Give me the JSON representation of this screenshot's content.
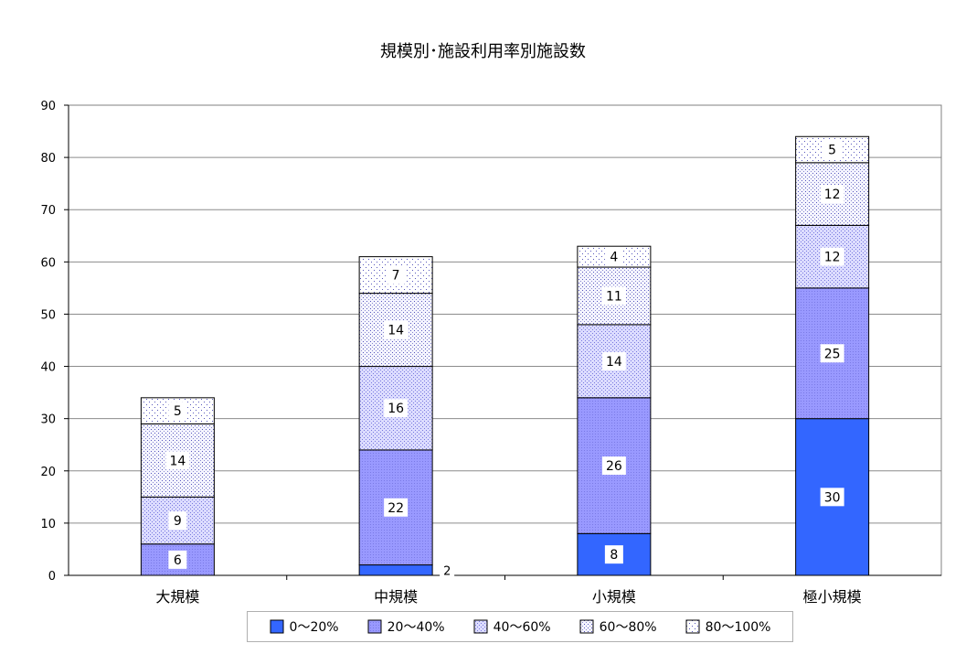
{
  "chart_data": {
    "type": "bar",
    "stacked": true,
    "title": "規模別･施設利用率別施設数",
    "categories": [
      "大規模",
      "中規模",
      "小規模",
      "極小規模"
    ],
    "series": [
      {
        "name": "0～20%",
        "values": [
          0,
          2,
          8,
          30
        ],
        "color": "#3366ff",
        "pattern": "solid"
      },
      {
        "name": "20～40%",
        "values": [
          6,
          22,
          26,
          25
        ],
        "color": "#9999ff",
        "pattern": "fine"
      },
      {
        "name": "40～60%",
        "values": [
          9,
          16,
          14,
          12
        ],
        "color": "#9999ff",
        "pattern": "dense-dots"
      },
      {
        "name": "60～80%",
        "values": [
          14,
          14,
          11,
          12
        ],
        "color": "#6666cc",
        "pattern": "dots"
      },
      {
        "name": "80～100%",
        "values": [
          5,
          7,
          4,
          5
        ],
        "color": "#6666cc",
        "pattern": "sparse-dots"
      }
    ],
    "data_labels": [
      [
        "",
        "6",
        "9",
        "14",
        "5"
      ],
      [
        "2",
        "22",
        "16",
        "14",
        "7"
      ],
      [
        "8",
        "26",
        "14",
        "11",
        "4"
      ],
      [
        "30",
        "25",
        "12",
        "12",
        "5"
      ]
    ],
    "ylim": [
      0,
      90
    ],
    "yticks": [
      0,
      10,
      20,
      30,
      40,
      50,
      60,
      70,
      80,
      90
    ],
    "grid": true,
    "legend_position": "bottom"
  }
}
